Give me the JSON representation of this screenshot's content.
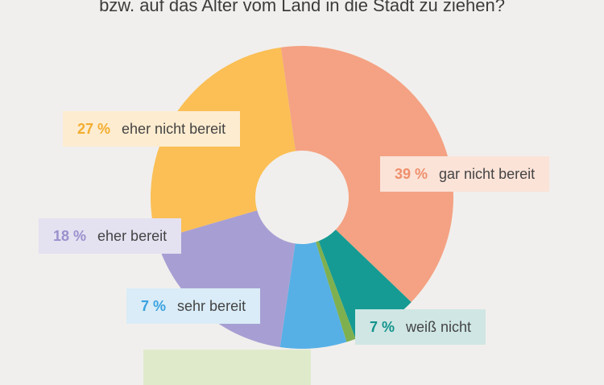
{
  "title": "bzw. auf das Alter vom Land in die Stadt zu ziehen?",
  "chart_data": {
    "type": "pie",
    "title": "bzw. auf das Alter vom Land in die Stadt zu ziehen?",
    "slices": [
      {
        "label": "gar nicht bereit",
        "value": 39,
        "pct_text": "39 %",
        "color": "#f4a283",
        "label_bg": "#fbe3d8",
        "pct_color": "#ee8f6c"
      },
      {
        "label": "weiß nicht",
        "value": 7,
        "pct_text": "7 %",
        "color": "#159b93",
        "label_bg": "#cfe6e4",
        "pct_color": "#11938b"
      },
      {
        "label": "",
        "value": 1,
        "pct_text": "",
        "color": "#7fb04f",
        "label_bg": "#dfeacb",
        "pct_color": "#7fb04f"
      },
      {
        "label": "sehr bereit",
        "value": 7,
        "pct_text": "7 %",
        "color": "#56b0e6",
        "label_bg": "#d9ecf7",
        "pct_color": "#3aa2e0"
      },
      {
        "label": "eher bereit",
        "value": 18,
        "pct_text": "18 %",
        "color": "#a79fd3",
        "label_bg": "#e4e1f1",
        "pct_color": "#9a91cd"
      },
      {
        "label": "eher nicht bereit",
        "value": 27,
        "pct_text": "27 %",
        "color": "#fbbf55",
        "label_bg": "#fdecd0",
        "pct_color": "#f3ad2e"
      }
    ]
  }
}
